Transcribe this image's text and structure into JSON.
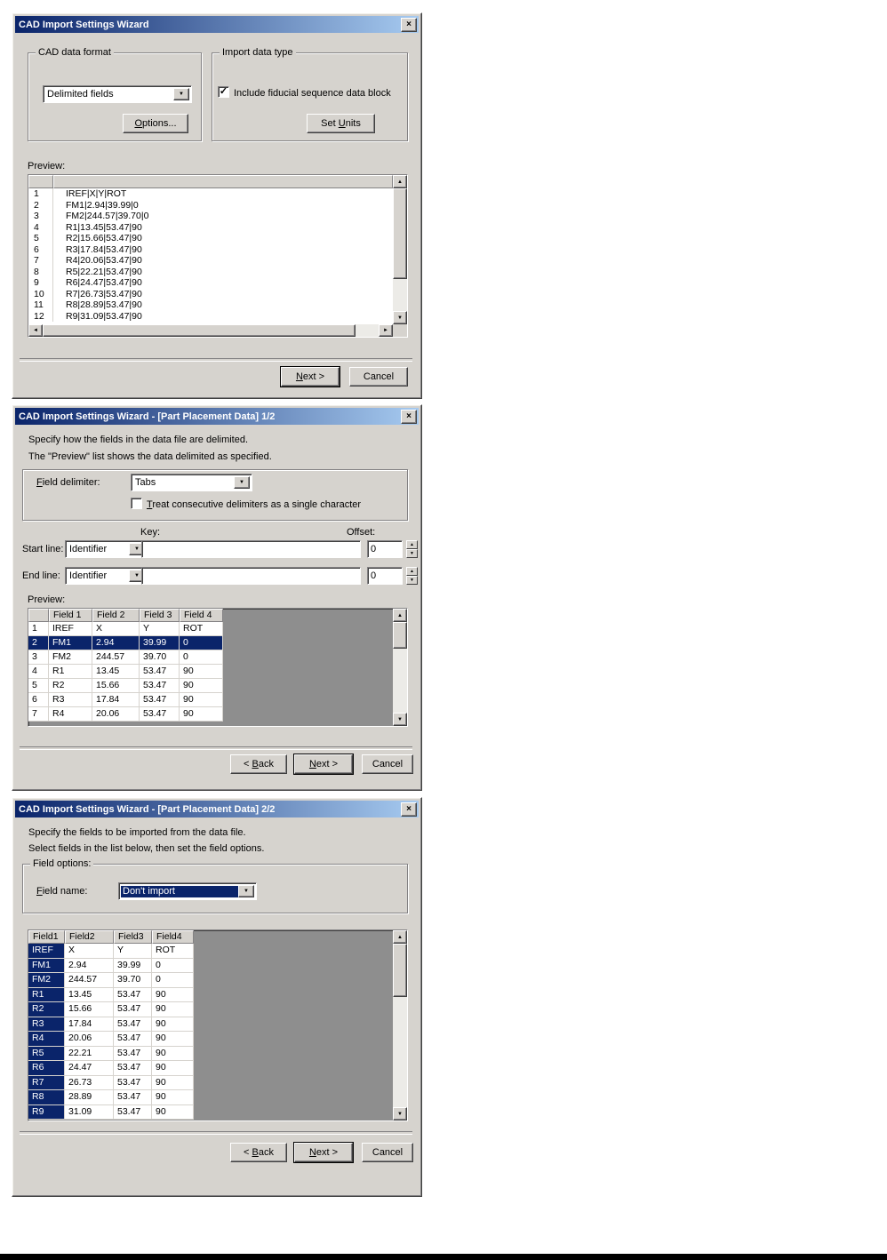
{
  "icons": {
    "close": "×",
    "dropdown": "▼",
    "check": "✓",
    "spin_up": "▲",
    "spin_down": "▼",
    "scroll_up": "▲",
    "scroll_down": "▼",
    "scroll_left": "◄",
    "scroll_right": "►"
  },
  "colors": {
    "titlebar_left": "#0A246A",
    "titlebar_right": "#A6CAF0",
    "selection": "#0A246A",
    "dialog_face": "#D6D3CE",
    "table_filler": "#8E8E8E"
  },
  "dialog1": {
    "title": "CAD Import Settings Wizard",
    "cad_data_format": {
      "label": "CAD data format",
      "format_value": "Delimited fields",
      "options_button": {
        "label": "Options...",
        "accel": "O"
      }
    },
    "import_data_type": {
      "label": "Import data type",
      "checkbox_label": "Include fiducial sequence data block",
      "checkbox_checked": true,
      "set_units_button": {
        "label": "Set Units",
        "accel": "U"
      }
    },
    "preview": {
      "label": "Preview:",
      "rows": [
        {
          "num": "1",
          "text": "IREF|X|Y|ROT"
        },
        {
          "num": "2",
          "text": "FM1|2.94|39.99|0"
        },
        {
          "num": "3",
          "text": "FM2|244.57|39.70|0"
        },
        {
          "num": "4",
          "text": "R1|13.45|53.47|90"
        },
        {
          "num": "5",
          "text": "R2|15.66|53.47|90"
        },
        {
          "num": "6",
          "text": "R3|17.84|53.47|90"
        },
        {
          "num": "7",
          "text": "R4|20.06|53.47|90"
        },
        {
          "num": "8",
          "text": "R5|22.21|53.47|90"
        },
        {
          "num": "9",
          "text": "R6|24.47|53.47|90"
        },
        {
          "num": "10",
          "text": "R7|26.73|53.47|90"
        },
        {
          "num": "11",
          "text": "R8|28.89|53.47|90"
        },
        {
          "num": "12",
          "text": "R9|31.09|53.47|90"
        }
      ]
    },
    "next_button": {
      "label": "Next >",
      "accel": "N"
    },
    "cancel_button": "Cancel"
  },
  "dialog2": {
    "title": "CAD Import Settings Wizard - [Part Placement Data] 1/2",
    "desc1": "Specify how the fields in the data file are delimited.",
    "desc2": "The \"Preview\" list shows the data delimited as specified.",
    "field_delimiter_label": {
      "label": "Field delimiter:",
      "accel": "F"
    },
    "field_delimiter_value": "Tabs",
    "treat_checkbox_label": {
      "label": "Treat consecutive delimiters as a single character",
      "accel": "T"
    },
    "treat_checkbox_checked": false,
    "key_label": "Key:",
    "offset_label": "Offset:",
    "start_line": {
      "label": "Start line:",
      "mode": "Identifier",
      "key": "",
      "offset": "0"
    },
    "end_line": {
      "label": "End line:",
      "mode": "Identifier",
      "key": "",
      "offset": "0"
    },
    "preview": {
      "label": "Preview:",
      "headers": [
        "",
        "Field 1",
        "Field 2",
        "Field 3",
        "Field 4"
      ],
      "rows": [
        [
          "1",
          "IREF",
          "X",
          "Y",
          "ROT"
        ],
        [
          "2",
          "FM1",
          "2.94",
          "39.99",
          "0"
        ],
        [
          "3",
          "FM2",
          "244.57",
          "39.70",
          "0"
        ],
        [
          "4",
          "R1",
          "13.45",
          "53.47",
          "90"
        ],
        [
          "5",
          "R2",
          "15.66",
          "53.47",
          "90"
        ],
        [
          "6",
          "R3",
          "17.84",
          "53.47",
          "90"
        ],
        [
          "7",
          "R4",
          "20.06",
          "53.47",
          "90"
        ]
      ],
      "selected_row": 1
    },
    "back_button": {
      "label": "< Back",
      "accel": "B"
    },
    "next_button": {
      "label": "Next >",
      "accel": "N"
    },
    "cancel_button": "Cancel"
  },
  "dialog3": {
    "title": "CAD Import Settings Wizard - [Part Placement Data] 2/2",
    "desc1": "Specify the fields to be imported from the data file.",
    "desc2": "Select fields in the list below, then set the field options.",
    "field_options_label": "Field options:",
    "field_name_label": {
      "label": "Field name:",
      "accel": "F"
    },
    "field_name_value": "Don't import",
    "table": {
      "headers": [
        "Field1",
        "Field2",
        "Field3",
        "Field4"
      ],
      "selected_col": 0,
      "rows": [
        [
          "IREF",
          "X",
          "Y",
          "ROT"
        ],
        [
          "FM1",
          "2.94",
          "39.99",
          "0"
        ],
        [
          "FM2",
          "244.57",
          "39.70",
          "0"
        ],
        [
          "R1",
          "13.45",
          "53.47",
          "90"
        ],
        [
          "R2",
          "15.66",
          "53.47",
          "90"
        ],
        [
          "R3",
          "17.84",
          "53.47",
          "90"
        ],
        [
          "R4",
          "20.06",
          "53.47",
          "90"
        ],
        [
          "R5",
          "22.21",
          "53.47",
          "90"
        ],
        [
          "R6",
          "24.47",
          "53.47",
          "90"
        ],
        [
          "R7",
          "26.73",
          "53.47",
          "90"
        ],
        [
          "R8",
          "28.89",
          "53.47",
          "90"
        ],
        [
          "R9",
          "31.09",
          "53.47",
          "90"
        ]
      ]
    },
    "back_button": {
      "label": "< Back",
      "accel": "B"
    },
    "next_button": {
      "label": "Next >",
      "accel": "N"
    },
    "cancel_button": "Cancel"
  }
}
